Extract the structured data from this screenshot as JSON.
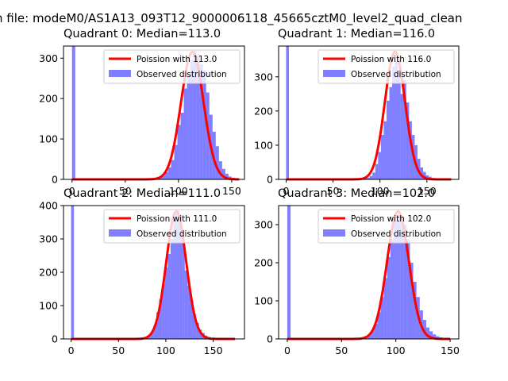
{
  "suptitle": "n file: modeM0/AS1A13_093T12_9000006118_45665cztM0_level2_quad_clean",
  "chart_data": [
    {
      "type": "bar",
      "title": "Quadrant 0: Median=113.0",
      "xlim": [
        -8,
        162
      ],
      "ylim": [
        0,
        330
      ],
      "xticks": [
        0,
        50,
        100,
        150
      ],
      "yticks": [
        0,
        100,
        200,
        300
      ],
      "legend": {
        "placement": "top-right",
        "line_label": "Poission with 113.0",
        "hist_label": "Observed distribution"
      },
      "series": [
        {
          "name": "Observed distribution",
          "bin_width": 3,
          "bins": [
            0,
            75,
            78,
            81,
            84,
            87,
            90,
            93,
            96,
            99,
            102,
            105,
            108,
            111,
            114,
            117,
            120,
            123,
            126,
            129,
            132,
            135,
            138,
            141,
            144,
            147,
            150,
            153
          ],
          "values": [
            330,
            2,
            4,
            5,
            9,
            18,
            30,
            48,
            85,
            135,
            165,
            225,
            260,
            295,
            318,
            305,
            285,
            270,
            215,
            160,
            118,
            82,
            45,
            26,
            14,
            7,
            4,
            2
          ]
        },
        {
          "name": "Poission with 113.0",
          "mean": 113.0,
          "sd": 10.6,
          "peak": 315,
          "range": [
            0,
            157
          ]
        }
      ]
    },
    {
      "type": "bar",
      "title": "Quadrant 1: Median=116.0",
      "xlim": [
        -8,
        184
      ],
      "ylim": [
        0,
        390
      ],
      "xticks": [
        0,
        50,
        100,
        150
      ],
      "yticks": [
        0,
        100,
        200,
        300
      ],
      "legend": {
        "placement": "top-right",
        "line_label": "Poission with 116.0",
        "hist_label": "Observed distribution"
      },
      "series": [
        {
          "name": "Observed distribution",
          "bin_width": 3,
          "bins": [
            0,
            80,
            83,
            86,
            89,
            92,
            95,
            98,
            101,
            104,
            107,
            110,
            113,
            116,
            119,
            122,
            125,
            128,
            131,
            134,
            137,
            140,
            143,
            146,
            149,
            152,
            155,
            158,
            161
          ],
          "values": [
            390,
            2,
            3,
            5,
            10,
            20,
            45,
            80,
            130,
            170,
            230,
            270,
            330,
            345,
            320,
            250,
            290,
            225,
            170,
            130,
            100,
            60,
            35,
            22,
            12,
            8,
            4,
            3,
            2
          ]
        },
        {
          "name": "Poission with 116.0",
          "mean": 116.0,
          "sd": 10.8,
          "peak": 373,
          "range": [
            0,
            176
          ]
        }
      ]
    },
    {
      "type": "bar",
      "title": "Quadrant 2: Median=111.0",
      "xlim": [
        -8,
        183
      ],
      "ylim": [
        0,
        400
      ],
      "xticks": [
        0,
        50,
        100,
        150
      ],
      "yticks": [
        0,
        100,
        200,
        300,
        400
      ],
      "legend": {
        "placement": "top-right",
        "line_label": "Poission with 111.0",
        "hist_label": "Observed distribution"
      },
      "series": [
        {
          "name": "Observed distribution",
          "bin_width": 3,
          "bins": [
            0,
            72,
            75,
            78,
            81,
            84,
            87,
            90,
            93,
            96,
            99,
            102,
            105,
            108,
            111,
            114,
            117,
            120,
            123,
            126,
            129,
            132,
            135,
            138,
            141,
            144,
            147,
            150
          ],
          "values": [
            400,
            2,
            4,
            6,
            10,
            20,
            40,
            80,
            120,
            165,
            215,
            255,
            300,
            375,
            385,
            370,
            295,
            205,
            160,
            115,
            75,
            48,
            28,
            18,
            10,
            6,
            3,
            2
          ]
        },
        {
          "name": "Poission with 111.0",
          "mean": 111.0,
          "sd": 10.5,
          "peak": 383,
          "range": [
            0,
            173
          ]
        }
      ]
    },
    {
      "type": "bar",
      "title": "Quadrant 3: Median=102.0",
      "xlim": [
        -8,
        158
      ],
      "ylim": [
        0,
        350
      ],
      "xticks": [
        0,
        50,
        100,
        150
      ],
      "yticks": [
        0,
        100,
        200,
        300
      ],
      "legend": {
        "placement": "top-right",
        "line_label": "Poission with 102.0",
        "hist_label": "Observed distribution"
      },
      "series": [
        {
          "name": "Observed distribution",
          "bin_width": 3,
          "bins": [
            0,
            65,
            68,
            71,
            74,
            77,
            80,
            83,
            86,
            89,
            92,
            95,
            98,
            101,
            104,
            107,
            110,
            113,
            116,
            119,
            122,
            125,
            128,
            131,
            134,
            137,
            140,
            143
          ],
          "values": [
            350,
            2,
            4,
            7,
            12,
            22,
            40,
            70,
            110,
            160,
            215,
            262,
            310,
            325,
            320,
            300,
            260,
            200,
            150,
            110,
            75,
            50,
            30,
            20,
            12,
            7,
            4,
            2
          ]
        },
        {
          "name": "Poission with 102.0",
          "mean": 102.0,
          "sd": 10.1,
          "peak": 335,
          "range": [
            0,
            150
          ]
        }
      ]
    }
  ]
}
